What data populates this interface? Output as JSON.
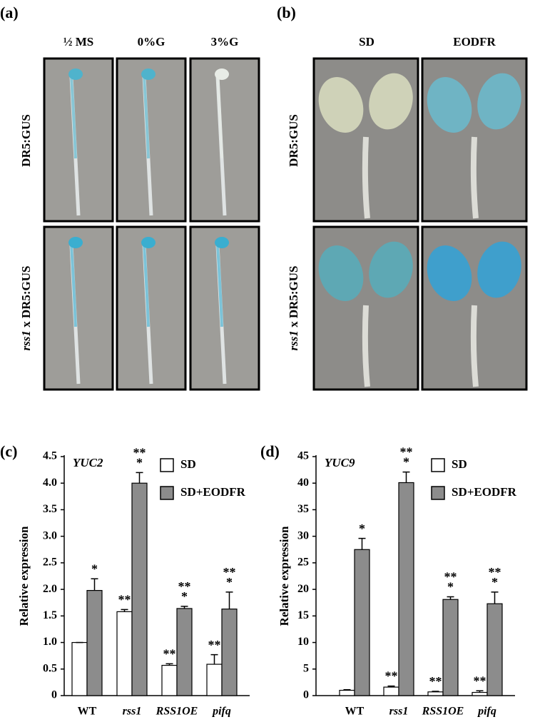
{
  "photos": {
    "a": {
      "label": "(a)",
      "columns": [
        "½ MS",
        "0%G",
        "3%G"
      ]
    },
    "b": {
      "label": "(b)",
      "columns": [
        "SD",
        "EODFR"
      ]
    },
    "row_labels": [
      [
        "DR5:GUS"
      ],
      [
        "rss1",
        " x DR5:GUS"
      ]
    ]
  },
  "chart_data": [
    {
      "type": "bar",
      "panel_label": "(c)",
      "gene": "YUC2",
      "ylabel": "Relative expression",
      "categories": [
        "WT",
        "rss1",
        "RSS1OE",
        "pifq"
      ],
      "category_italic": [
        false,
        true,
        true,
        true
      ],
      "series": [
        {
          "name": "SD",
          "color": "#ffffff",
          "values": [
            1.0,
            1.58,
            0.57,
            0.59
          ],
          "errors": [
            0,
            0.04,
            0.03,
            0.18
          ],
          "significance": [
            null,
            [
              "**"
            ],
            [
              "**"
            ],
            [
              "**"
            ]
          ]
        },
        {
          "name": "SD+EODFR",
          "color": "#8c8c8c",
          "values": [
            1.98,
            4.0,
            1.64,
            1.63
          ],
          "errors": [
            0.22,
            0.2,
            0.04,
            0.32
          ],
          "significance": [
            [
              "*"
            ],
            [
              "**",
              "*"
            ],
            [
              "**",
              "*"
            ],
            [
              "**",
              "*"
            ]
          ]
        }
      ],
      "ylim": [
        0,
        4.5
      ],
      "yticks": [
        0,
        0.5,
        {
          "value": 1,
          "label": "1.0"
        },
        1.5,
        {
          "value": 2,
          "label": "2.0"
        },
        2.5,
        {
          "value": 3,
          "label": "3.0"
        },
        3.5,
        {
          "value": 4,
          "label": "4.0"
        },
        4.5
      ]
    },
    {
      "type": "bar",
      "panel_label": "(d)",
      "gene": "YUC9",
      "ylabel": "Relative expression",
      "categories": [
        "WT",
        "rss1",
        "RSS1OE",
        "pifq"
      ],
      "category_italic": [
        false,
        true,
        true,
        true
      ],
      "series": [
        {
          "name": "SD",
          "color": "#ffffff",
          "values": [
            1.0,
            1.6,
            0.7,
            0.6
          ],
          "errors": [
            0.1,
            0.2,
            0.1,
            0.3
          ],
          "significance": [
            null,
            [
              "**"
            ],
            [
              "**"
            ],
            [
              "**"
            ]
          ]
        },
        {
          "name": "SD+EODFR",
          "color": "#8c8c8c",
          "values": [
            27.5,
            40.1,
            18.1,
            17.3
          ],
          "errors": [
            2.1,
            2.0,
            0.5,
            2.2
          ],
          "significance": [
            [
              "*"
            ],
            [
              "**",
              "*"
            ],
            [
              "**",
              "*"
            ],
            [
              "**",
              "*"
            ]
          ]
        }
      ],
      "ylim": [
        0,
        45
      ],
      "yticks": [
        0,
        5,
        10,
        15,
        20,
        25,
        30,
        35,
        40,
        45
      ]
    }
  ]
}
